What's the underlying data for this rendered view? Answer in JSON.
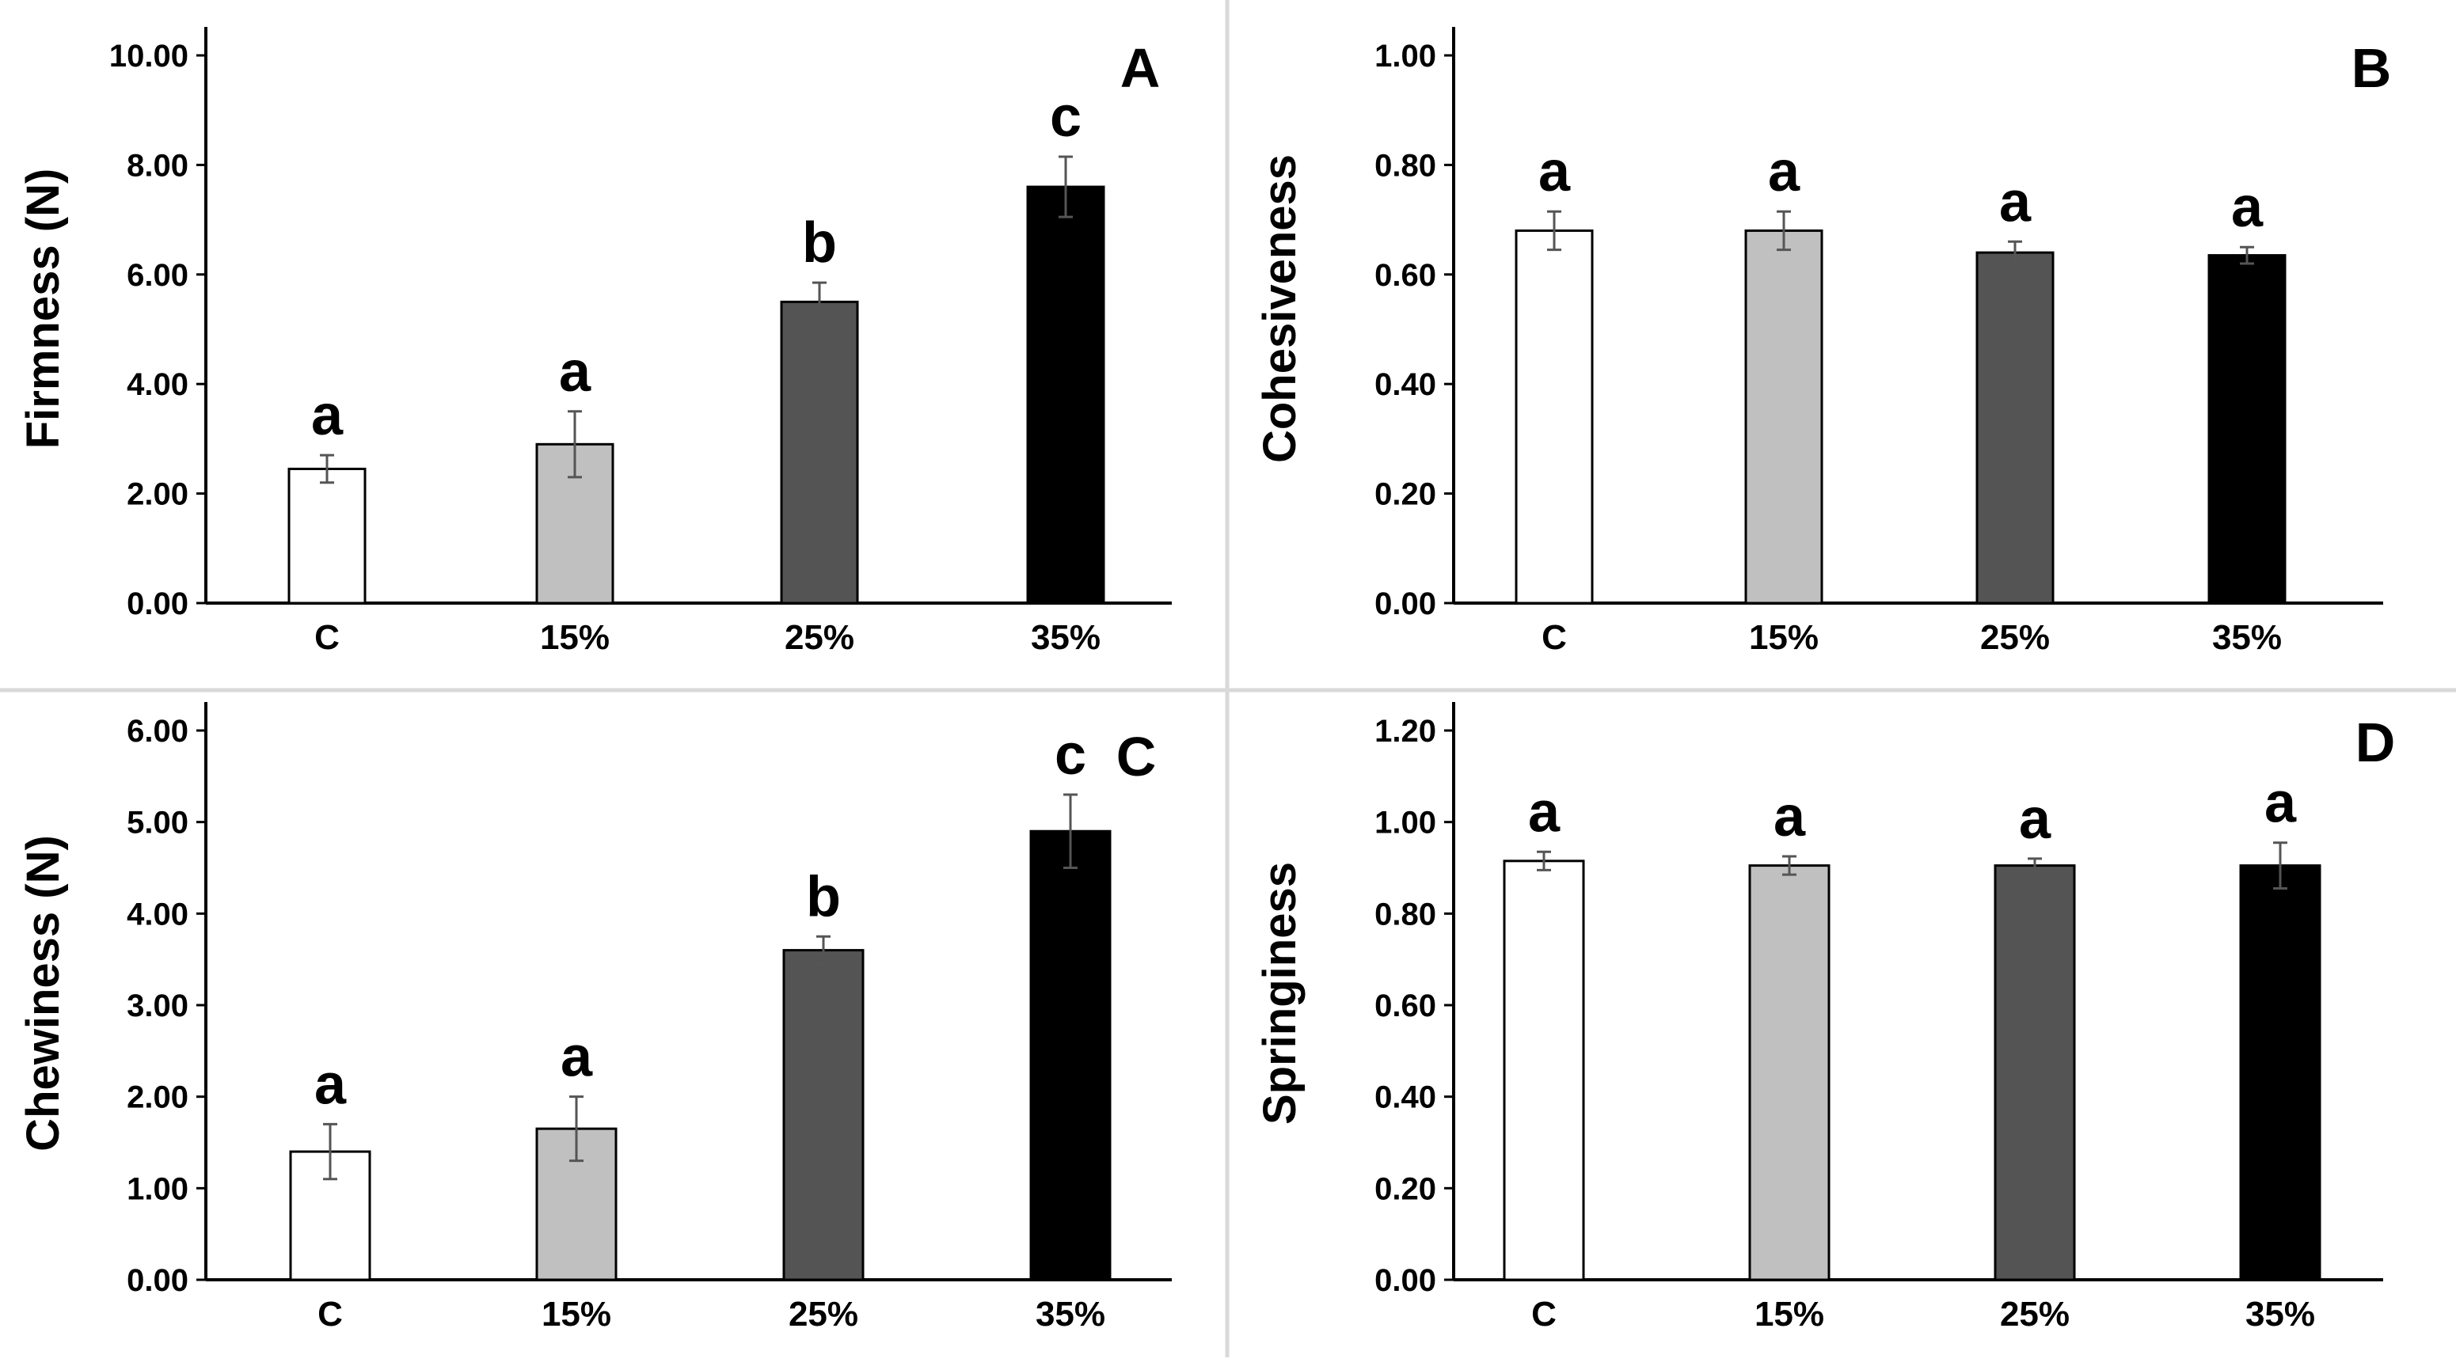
{
  "figure": {
    "background": "#ffffff",
    "divider_color": "#d9d9d9"
  },
  "chart_data": [
    {
      "type": "bar",
      "panel": "A",
      "title": "",
      "xlabel": "",
      "ylabel": "Firmness (N)",
      "categories": [
        "C",
        "15%",
        "25%",
        "35%"
      ],
      "values": [
        2.45,
        2.9,
        5.5,
        7.6
      ],
      "errors": [
        0.25,
        0.6,
        0.35,
        0.55
      ],
      "significance": [
        "a",
        "a",
        "b",
        "c"
      ],
      "ylim": [
        0,
        10
      ],
      "yticks": [
        0,
        2,
        4,
        6,
        8,
        10
      ],
      "ytick_labels": [
        "0.00",
        "2.00",
        "4.00",
        "6.00",
        "8.00",
        "10.00"
      ],
      "bar_colors": [
        "#ffffff",
        "#c0c0c0",
        "#545454",
        "#000000"
      ],
      "grid": false
    },
    {
      "type": "bar",
      "panel": "B",
      "title": "",
      "xlabel": "",
      "ylabel": "Cohesiveness",
      "categories": [
        "C",
        "15%",
        "25%",
        "35%"
      ],
      "values": [
        0.68,
        0.68,
        0.64,
        0.635
      ],
      "errors": [
        0.035,
        0.035,
        0.02,
        0.015
      ],
      "significance": [
        "a",
        "a",
        "a",
        "a"
      ],
      "ylim": [
        0,
        1
      ],
      "yticks": [
        0,
        0.2,
        0.4,
        0.6,
        0.8,
        1.0
      ],
      "ytick_labels": [
        "0.00",
        "0.20",
        "0.40",
        "0.60",
        "0.80",
        "1.00"
      ],
      "bar_colors": [
        "#ffffff",
        "#c0c0c0",
        "#545454",
        "#000000"
      ],
      "grid": false
    },
    {
      "type": "bar",
      "panel": "C",
      "title": "",
      "xlabel": "",
      "ylabel": "Chewiness (N)",
      "categories": [
        "C",
        "15%",
        "25%",
        "35%"
      ],
      "values": [
        1.4,
        1.65,
        3.6,
        4.9
      ],
      "errors": [
        0.3,
        0.35,
        0.15,
        0.4
      ],
      "significance": [
        "a",
        "a",
        "b",
        "c"
      ],
      "ylim": [
        0,
        6
      ],
      "yticks": [
        0,
        1,
        2,
        3,
        4,
        5,
        6
      ],
      "ytick_labels": [
        "0.00",
        "1.00",
        "2.00",
        "3.00",
        "4.00",
        "5.00",
        "6.00"
      ],
      "bar_colors": [
        "#ffffff",
        "#c0c0c0",
        "#545454",
        "#000000"
      ],
      "grid": false
    },
    {
      "type": "bar",
      "panel": "D",
      "title": "",
      "xlabel": "",
      "ylabel": "Springiness",
      "categories": [
        "C",
        "15%",
        "25%",
        "35%"
      ],
      "values": [
        0.915,
        0.905,
        0.905,
        0.905
      ],
      "errors": [
        0.02,
        0.02,
        0.015,
        0.05
      ],
      "significance": [
        "a",
        "a",
        "a",
        "a"
      ],
      "ylim": [
        0,
        1.2
      ],
      "yticks": [
        0,
        0.2,
        0.4,
        0.6,
        0.8,
        1.0,
        1.2
      ],
      "ytick_labels": [
        "0.00",
        "0.20",
        "0.40",
        "0.60",
        "0.80",
        "1.00",
        "1.20"
      ],
      "bar_colors": [
        "#ffffff",
        "#c0c0c0",
        "#545454",
        "#000000"
      ],
      "grid": false
    }
  ]
}
